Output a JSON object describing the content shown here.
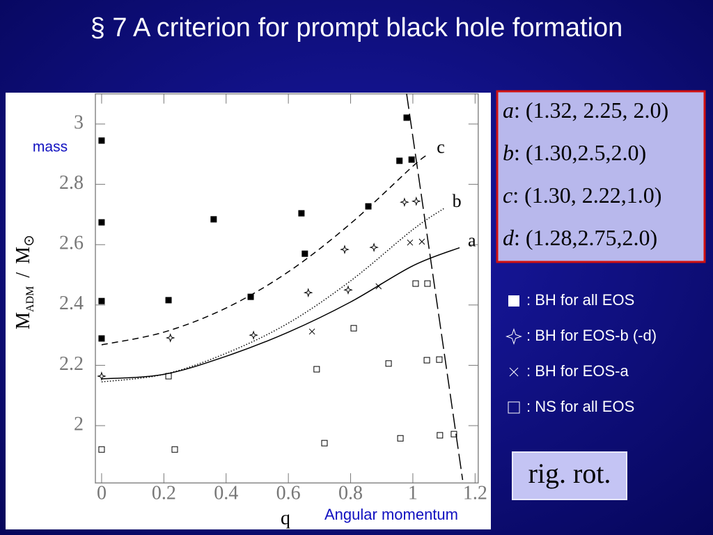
{
  "chart_data": {
    "type": "scatter",
    "title": "§ 7  A criterion for prompt black hole formation",
    "x_label": "q",
    "y_label": [
      "M",
      "ADM",
      "/",
      "M",
      "⊙"
    ],
    "annotations": [
      "mass",
      "Angular momentum"
    ],
    "xlim": [
      -0.02,
      1.21
    ],
    "ylim": [
      1.81,
      3.1
    ],
    "xticks": [
      0,
      0.2,
      0.4,
      0.6,
      0.8,
      1,
      1.2
    ],
    "yticks": [
      2,
      2.2,
      2.4,
      2.6,
      2.8,
      3
    ],
    "series": [
      {
        "type": "scatter",
        "name": ": BH for all EOS",
        "marker": "filled-square",
        "color": "#000000",
        "x": [
          0,
          0,
          0,
          0,
          0.215,
          0.36,
          0.479,
          0.642,
          0.653,
          0.857,
          0.957,
          0.98,
          0.996
        ],
        "values": [
          2.945,
          2.674,
          2.413,
          2.289,
          2.416,
          2.684,
          2.427,
          2.704,
          2.57,
          2.727,
          2.878,
          3.021,
          2.882
        ]
      },
      {
        "type": "scatter",
        "name": ": BH for EOS-b (-d)",
        "marker": "star",
        "color": "#000000",
        "x": [
          0,
          0.221,
          0.488,
          0.664,
          0.781,
          0.792,
          0.875,
          0.973,
          1.011
        ],
        "values": [
          2.164,
          2.291,
          2.3,
          2.441,
          2.584,
          2.45,
          2.591,
          2.741,
          2.744
        ]
      },
      {
        "type": "scatter",
        "name": ": BH for EOS-a",
        "marker": "cross",
        "color": "#000000",
        "x": [
          0.676,
          0.89,
          0.991,
          1.029
        ],
        "values": [
          2.312,
          2.462,
          2.607,
          2.61
        ]
      },
      {
        "type": "scatter",
        "name": ": NS for all EOS",
        "marker": "open-square",
        "color": "#000000",
        "x": [
          0,
          0.215,
          0.235,
          0.691,
          0.716,
          0.81,
          0.922,
          0.96,
          1.009,
          1.047,
          1.045,
          1.085,
          1.087,
          1.132
        ],
        "values": [
          1.921,
          2.164,
          1.921,
          2.187,
          1.942,
          2.323,
          2.206,
          1.958,
          2.471,
          2.471,
          2.217,
          2.219,
          1.968,
          1.972
        ]
      },
      {
        "type": "line",
        "name": "c",
        "dash": "9,6",
        "color": "#000000",
        "x": [
          0,
          0.2,
          0.4,
          0.6,
          0.8,
          1,
          1.05
        ],
        "values": [
          2.268,
          2.31,
          2.39,
          2.51,
          2.67,
          2.86,
          2.9
        ]
      },
      {
        "type": "line",
        "name": "b",
        "dash": "1.5,2.5",
        "color": "#000000",
        "x": [
          0,
          0.2,
          0.4,
          0.6,
          0.8,
          1,
          1.1
        ],
        "values": [
          2.145,
          2.17,
          2.24,
          2.34,
          2.48,
          2.65,
          2.72
        ]
      },
      {
        "type": "line",
        "name": "a",
        "dash": "none",
        "color": "#000000",
        "x": [
          0,
          0.2,
          0.4,
          0.6,
          0.8,
          1,
          1.15
        ],
        "values": [
          2.155,
          2.17,
          2.23,
          2.31,
          2.41,
          2.53,
          2.59
        ]
      },
      {
        "type": "line",
        "dash": "22,7",
        "color": "#000000",
        "x": [
          0.98,
          1.16
        ],
        "values": [
          3.1,
          1.82
        ]
      }
    ]
  },
  "eos_box": {
    "lines": [
      {
        "letter": "a",
        "params": ": (1.32, 2.25, 2.0)"
      },
      {
        "letter": "b",
        "params": ": (1.30,2.5,2.0)"
      },
      {
        "letter": "c",
        "params": ": (1.30, 2.22,1.0)"
      },
      {
        "letter": "d",
        "params": ": (1.28,2.75,2.0)"
      }
    ]
  },
  "note": "rig. rot."
}
